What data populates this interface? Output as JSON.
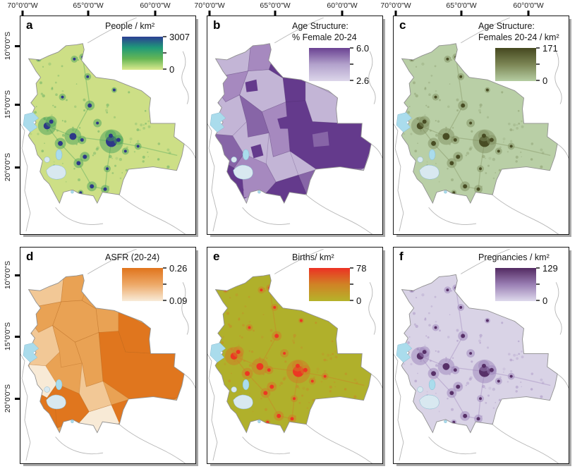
{
  "figure": {
    "top_axis_labels": [
      "70°0'0\"W",
      "65°0'0\"W",
      "60°0'0\"W"
    ],
    "left_axis_labels": [
      "10°0'0\"S",
      "15°0'0\"S",
      "20°0'0\"S"
    ],
    "lake_color": "#aadcec",
    "salar_color": "#d8e8f0",
    "outline_color": "#909090",
    "neighbor_line_color": "#b5b5b5"
  },
  "panels": [
    {
      "letter": "a",
      "title_lines": [
        "People / km²"
      ],
      "legend_max": "3007",
      "legend_min": "0",
      "gradient": [
        "#2c3e93",
        "#1f9a78",
        "#66b654",
        "#dcea90"
      ],
      "map_colors": {
        "base": "#cddf86",
        "halo": "#4aa25a",
        "spot": "#293089"
      }
    },
    {
      "letter": "b",
      "title_lines": [
        "Age Structure:",
        "% Female 20-24"
      ],
      "legend_max": "6.0",
      "legend_min": "2.6",
      "gradient": [
        "#6a4192",
        "#b3a2cc",
        "#dcd6ea"
      ],
      "map_colors": {
        "levels": [
          "#ded8eb",
          "#c3b5d6",
          "#a689bf",
          "#8765a7",
          "#643a8c"
        ]
      }
    },
    {
      "letter": "c",
      "title_lines": [
        "Age Structure:",
        "Females 20-24 / km²"
      ],
      "legend_max": "171",
      "legend_min": "0",
      "gradient": [
        "#45481f",
        "#7c8655",
        "#b5cda2"
      ],
      "map_colors": {
        "base": "#b9cfa6",
        "halo": "#7f8f60",
        "spot": "#45481f"
      }
    },
    {
      "letter": "d",
      "title_lines": [
        "ASFR (20-24)"
      ],
      "legend_max": "0.26",
      "legend_min": "0.09",
      "gradient": [
        "#e0741c",
        "#eda968",
        "#f8ebd8"
      ],
      "map_colors": {
        "levels": [
          "#f8ead6",
          "#f2c896",
          "#e9a254",
          "#e0761e"
        ]
      }
    },
    {
      "letter": "e",
      "title_lines": [
        "Births/ km²"
      ],
      "legend_max": "78",
      "legend_min": "0",
      "gradient": [
        "#ed3124",
        "#d08325",
        "#b5b32a"
      ],
      "map_colors": {
        "base": "#b0b02b",
        "halo": "#d07c26",
        "spot": "#ee3123"
      }
    },
    {
      "letter": "f",
      "title_lines": [
        "Pregnancies / km²"
      ],
      "legend_max": "129",
      "legend_min": "0",
      "gradient": [
        "#532a62",
        "#9a7fb4",
        "#ded9ec"
      ],
      "map_colors": {
        "base": "#d9d3e6",
        "halo": "#9c83ba",
        "spot": "#522a63"
      }
    }
  ]
}
